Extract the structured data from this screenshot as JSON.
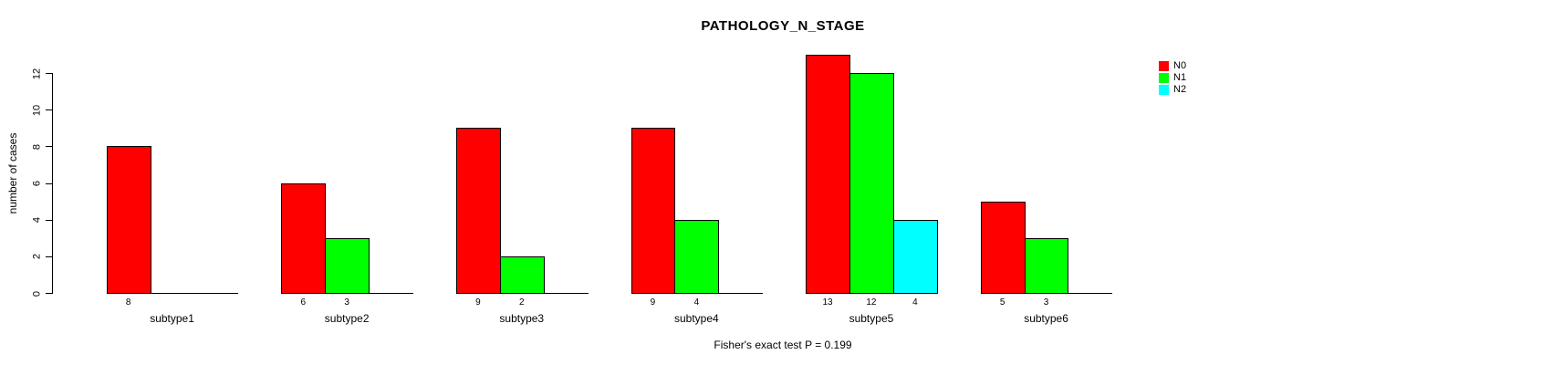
{
  "title": "PATHOLOGY_N_STAGE",
  "ylabel": "number of cases",
  "footer": "Fisher's exact test P = 0.199",
  "chart_data": {
    "type": "bar",
    "title": "PATHOLOGY_N_STAGE",
    "xlabel": "",
    "ylabel": "number of cases",
    "categories": [
      "subtype1",
      "subtype2",
      "subtype3",
      "subtype4",
      "subtype5",
      "subtype6"
    ],
    "series": [
      {
        "name": "N0",
        "color": "#FF0000",
        "values": [
          8,
          6,
          9,
          9,
          13,
          5
        ]
      },
      {
        "name": "N1",
        "color": "#00FF00",
        "values": [
          0,
          3,
          2,
          4,
          12,
          3
        ]
      },
      {
        "name": "N2",
        "color": "#00FFFF",
        "values": [
          0,
          0,
          0,
          0,
          4,
          0
        ]
      }
    ],
    "bar_value_labels": true,
    "yticks": [
      0,
      2,
      4,
      6,
      8,
      10,
      12
    ],
    "ylim": [
      0,
      13
    ],
    "grid": false,
    "legend_position": "top-right",
    "annotation": "Fisher's exact test P = 0.199"
  }
}
